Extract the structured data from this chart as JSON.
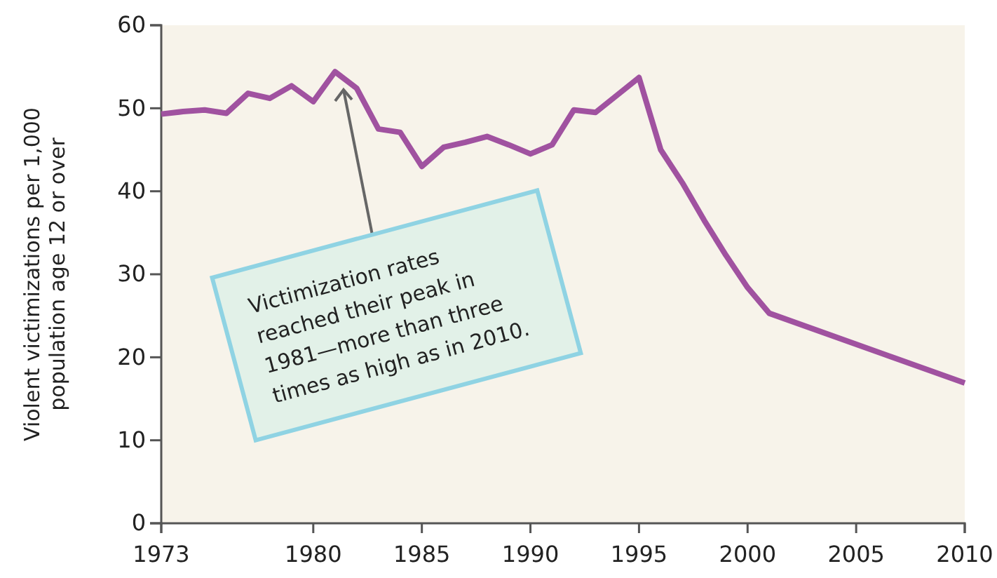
{
  "chart_data": {
    "type": "line",
    "ylabel": "Violent victimizations per 1,000 population age 12 or over",
    "x": [
      1973,
      1974,
      1975,
      1976,
      1977,
      1978,
      1979,
      1980,
      1981,
      1982,
      1983,
      1984,
      1985,
      1986,
      1987,
      1988,
      1989,
      1990,
      1991,
      1992,
      1993,
      1995,
      1996,
      1997,
      1998,
      1999,
      2000,
      2001,
      2010
    ],
    "series": [
      {
        "color": "#a052a0",
        "values": [
          49.3,
          49.6,
          49.8,
          49.4,
          51.8,
          51.2,
          52.7,
          50.8,
          54.4,
          52.4,
          47.5,
          47.1,
          43.0,
          45.3,
          45.9,
          46.6,
          45.6,
          44.5,
          45.6,
          49.8,
          49.5,
          53.7,
          45.0,
          41.0,
          36.5,
          32.3,
          28.4,
          25.3,
          16.9
        ]
      }
    ],
    "xlim": [
      1973,
      2010
    ],
    "xticks": [
      1973,
      1980,
      1985,
      1990,
      1995,
      2000,
      2005,
      2010
    ],
    "ylim": [
      0,
      60
    ],
    "yticks": [
      0,
      10,
      20,
      30,
      40,
      50,
      60
    ],
    "grid": false,
    "marker": "none",
    "line_style": "solid",
    "annotations": [
      "Victimization rates reached their peak in 1981—more than three times as high as in 2010."
    ]
  }
}
